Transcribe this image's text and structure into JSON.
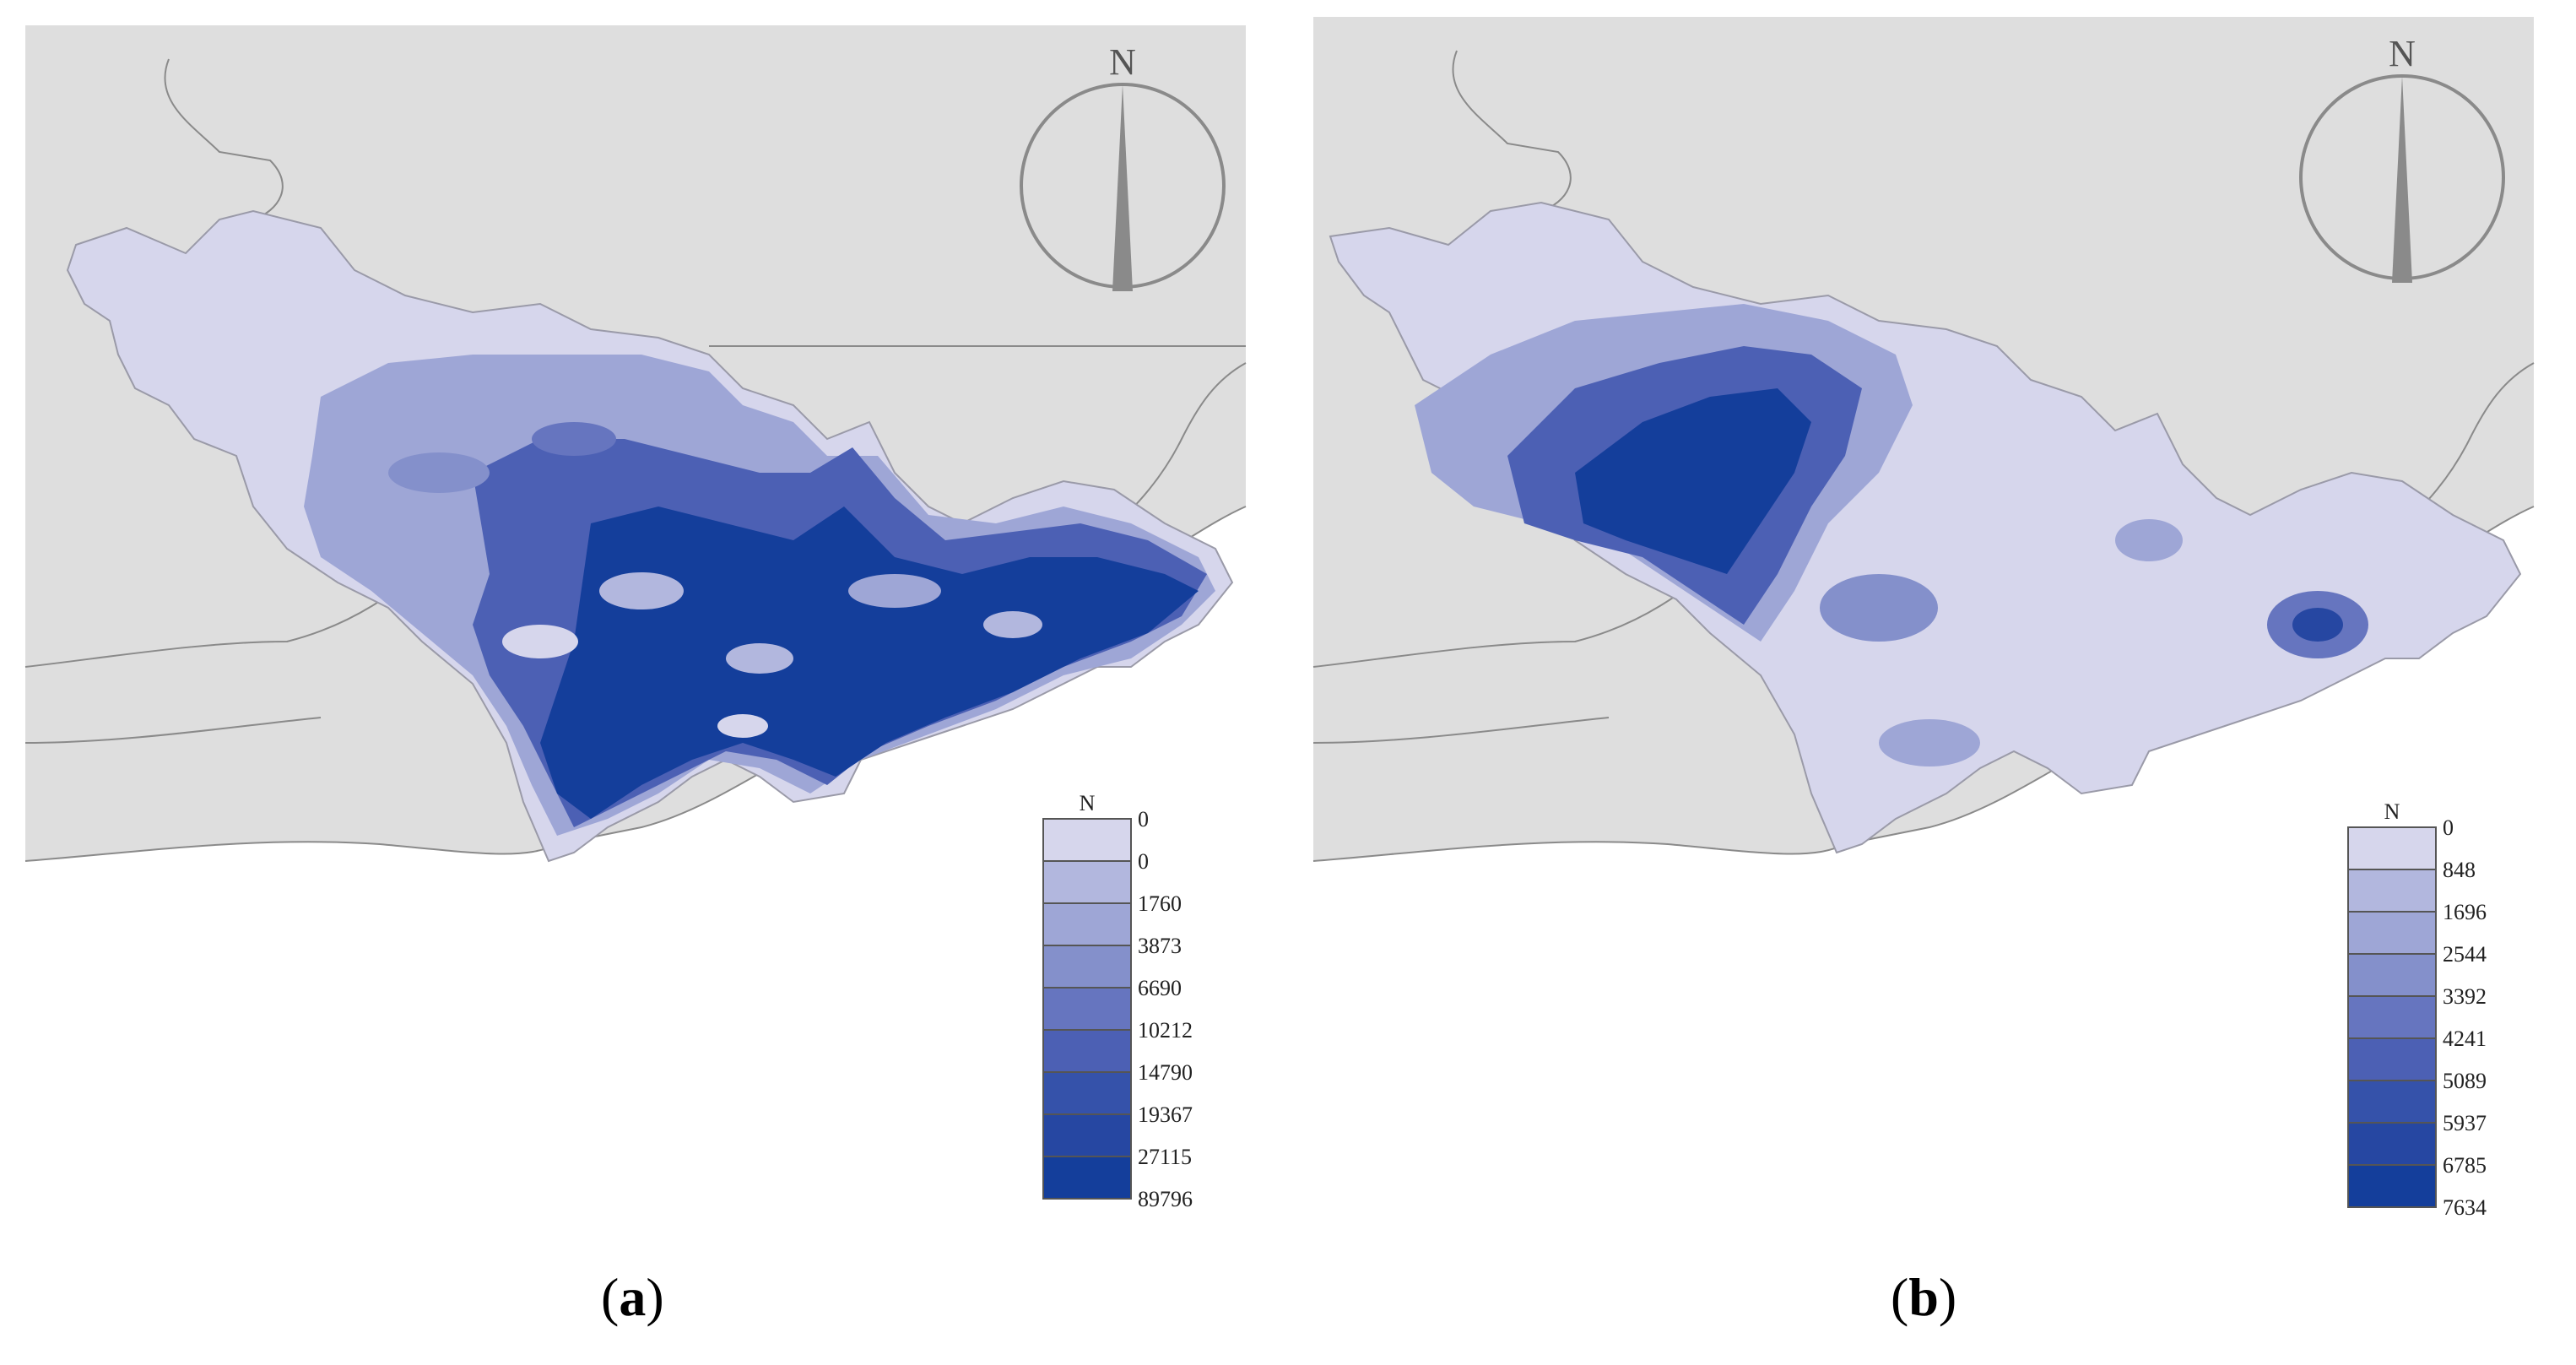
{
  "panels": [
    {
      "id": "a",
      "caption": "a",
      "compass_label": "N",
      "legend": {
        "title": "N",
        "breaks": [
          "0",
          "0",
          "1760",
          "3873",
          "6690",
          "10212",
          "14790",
          "19367",
          "27115",
          "89796"
        ],
        "colors": [
          "#d6d6ec",
          "#b2b7de",
          "#9ea6d6",
          "#8490cb",
          "#6675bf",
          "#4c60b4",
          "#3552aa",
          "#2647a2",
          "#143e9b"
        ]
      }
    },
    {
      "id": "b",
      "caption": "b",
      "compass_label": "N",
      "legend": {
        "title": "N",
        "breaks": [
          "0",
          "848",
          "1696",
          "2544",
          "3392",
          "4241",
          "5089",
          "5937",
          "6785",
          "7634"
        ],
        "colors": [
          "#d6d6ec",
          "#b2b7de",
          "#9ea6d6",
          "#8490cb",
          "#6675bf",
          "#4c60b4",
          "#3552aa",
          "#2647a2",
          "#143e9b"
        ]
      }
    }
  ]
}
